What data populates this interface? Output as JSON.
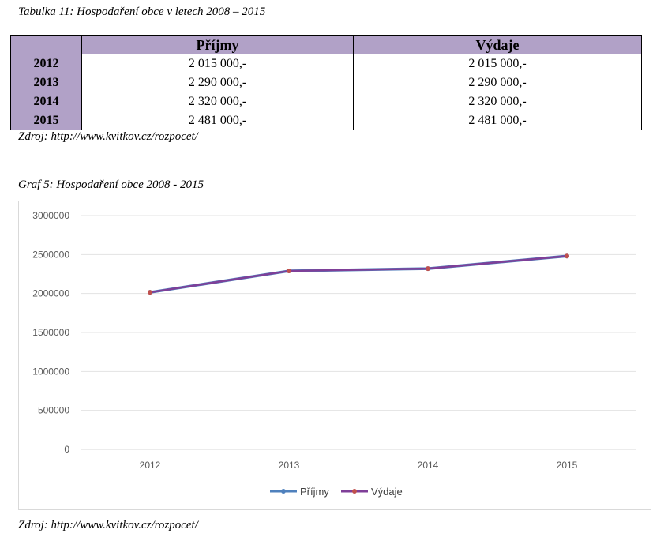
{
  "table": {
    "caption": "Tabulka 11: Hospodaření obce v letech 2008 – 2015",
    "headers": [
      "",
      "Příjmy",
      "Výdaje"
    ],
    "rows": [
      {
        "year": "2012",
        "income": "2 015 000,-",
        "expenses": "2 015 000,-"
      },
      {
        "year": "2013",
        "income": "2 290 000,-",
        "expenses": "2 290 000,-"
      },
      {
        "year": "2014",
        "income": "2 320 000,-",
        "expenses": "2 320 000,-"
      },
      {
        "year": "2015",
        "income": "2 481 000,-",
        "expenses": "2 481 000,-"
      }
    ],
    "source": "Zdroj: http://www.kvitkov.cz/rozpocet/"
  },
  "graph": {
    "caption": "Graf 5: Hospodaření obce 2008 - 2015",
    "source": "Zdroj: http://www.kvitkov.cz/rozpocet/"
  },
  "chart_data": {
    "type": "line",
    "x": [
      "2012",
      "2013",
      "2014",
      "2015"
    ],
    "series": [
      {
        "name": "Příjmy",
        "values": [
          2015000,
          2290000,
          2320000,
          2481000
        ],
        "color": "#4f81bd"
      },
      {
        "name": "Výdaje",
        "values": [
          2015000,
          2290000,
          2320000,
          2481000
        ],
        "color": "#7f3f98",
        "marker_color": "#c0504d"
      }
    ],
    "ylim": [
      0,
      3000000
    ],
    "yticks": [
      "0",
      "500000",
      "1000000",
      "1500000",
      "2000000",
      "2500000",
      "3000000"
    ],
    "grid": true,
    "legend": "bottom",
    "title": "",
    "xlabel": "",
    "ylabel": ""
  }
}
